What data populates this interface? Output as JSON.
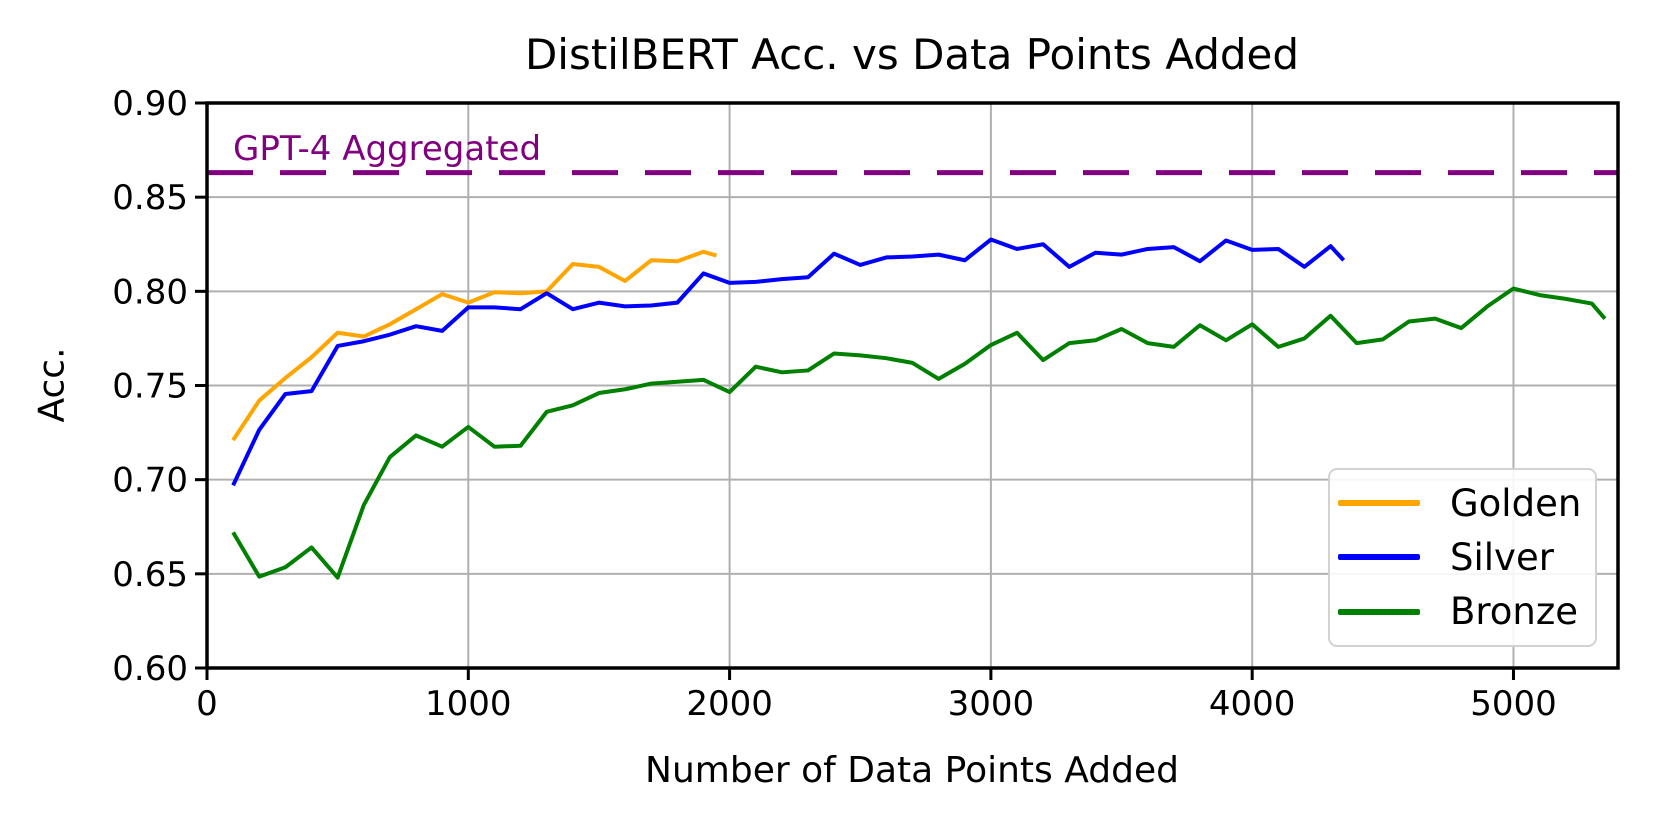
{
  "title": "DistilBERT Acc. vs Data Points Added",
  "axes": {
    "xlabel": "Number of Data Points Added",
    "ylabel": "Acc."
  },
  "annotation": {
    "label": "GPT-4 Aggregated",
    "color": "#800080"
  },
  "colors": {
    "grid": "#b0b0b0",
    "axis": "#000000",
    "background": "#ffffff"
  },
  "chart_data": {
    "type": "line",
    "title": "DistilBERT Acc. vs Data Points Added",
    "xlabel": "Number of Data Points Added",
    "ylabel": "Acc.",
    "xlim": [
      0,
      5400
    ],
    "ylim": [
      0.6,
      0.9
    ],
    "xticks": [
      0,
      1000,
      2000,
      3000,
      4000,
      5000
    ],
    "yticks": [
      0.6,
      0.65,
      0.7,
      0.75,
      0.8,
      0.85,
      0.9
    ],
    "grid": true,
    "legend_position": "lower right",
    "reference_line": {
      "label": "GPT-4 Aggregated",
      "y": 0.863,
      "color": "#800080",
      "style": "dashed"
    },
    "series": [
      {
        "name": "Golden",
        "color": "#FFA500",
        "x": [
          100,
          200,
          300,
          400,
          500,
          600,
          700,
          800,
          900,
          1000,
          1100,
          1200,
          1300,
          1400,
          1500,
          1600,
          1700,
          1800,
          1900,
          1950
        ],
        "y": [
          0.721,
          0.742,
          0.754,
          0.765,
          0.778,
          0.776,
          0.7825,
          0.7905,
          0.7985,
          0.794,
          0.7995,
          0.799,
          0.8,
          0.8145,
          0.813,
          0.8055,
          0.8165,
          0.816,
          0.821,
          0.819
        ]
      },
      {
        "name": "Silver",
        "color": "#0000FF",
        "x": [
          100,
          200,
          300,
          400,
          500,
          600,
          700,
          800,
          900,
          1000,
          1100,
          1200,
          1300,
          1400,
          1500,
          1600,
          1700,
          1800,
          1900,
          2000,
          2100,
          2200,
          2300,
          2400,
          2500,
          2600,
          2700,
          2800,
          2900,
          3000,
          3100,
          3200,
          3300,
          3400,
          3500,
          3600,
          3700,
          3800,
          3900,
          4000,
          4100,
          4200,
          4300,
          4350
        ],
        "y": [
          0.697,
          0.7265,
          0.7455,
          0.747,
          0.771,
          0.7735,
          0.777,
          0.7815,
          0.779,
          0.7915,
          0.7915,
          0.7905,
          0.799,
          0.7905,
          0.794,
          0.792,
          0.7925,
          0.794,
          0.8095,
          0.8045,
          0.805,
          0.8065,
          0.8075,
          0.82,
          0.814,
          0.818,
          0.8185,
          0.8195,
          0.8165,
          0.8275,
          0.8225,
          0.825,
          0.813,
          0.8205,
          0.8195,
          0.8225,
          0.8235,
          0.816,
          0.827,
          0.822,
          0.8225,
          0.813,
          0.824,
          0.8165
        ]
      },
      {
        "name": "Bronze",
        "color": "#008000",
        "x": [
          100,
          200,
          300,
          400,
          500,
          600,
          700,
          800,
          900,
          1000,
          1100,
          1200,
          1300,
          1400,
          1500,
          1600,
          1700,
          1800,
          1900,
          2000,
          2100,
          2200,
          2300,
          2400,
          2500,
          2600,
          2700,
          2800,
          2900,
          3000,
          3100,
          3200,
          3300,
          3400,
          3500,
          3600,
          3700,
          3800,
          3900,
          4000,
          4100,
          4200,
          4300,
          4400,
          4500,
          4600,
          4700,
          4800,
          4900,
          5000,
          5100,
          5200,
          5300,
          5350
        ],
        "y": [
          0.672,
          0.6485,
          0.6535,
          0.664,
          0.648,
          0.6865,
          0.712,
          0.7235,
          0.7175,
          0.728,
          0.7175,
          0.718,
          0.736,
          0.7395,
          0.746,
          0.748,
          0.751,
          0.752,
          0.753,
          0.7465,
          0.76,
          0.757,
          0.758,
          0.767,
          0.766,
          0.7645,
          0.762,
          0.7535,
          0.7615,
          0.7715,
          0.778,
          0.7635,
          0.7725,
          0.774,
          0.78,
          0.7725,
          0.7705,
          0.782,
          0.774,
          0.7825,
          0.7705,
          0.775,
          0.787,
          0.7725,
          0.7745,
          0.784,
          0.7855,
          0.7805,
          0.792,
          0.8015,
          0.798,
          0.796,
          0.7935,
          0.7855
        ]
      }
    ]
  }
}
